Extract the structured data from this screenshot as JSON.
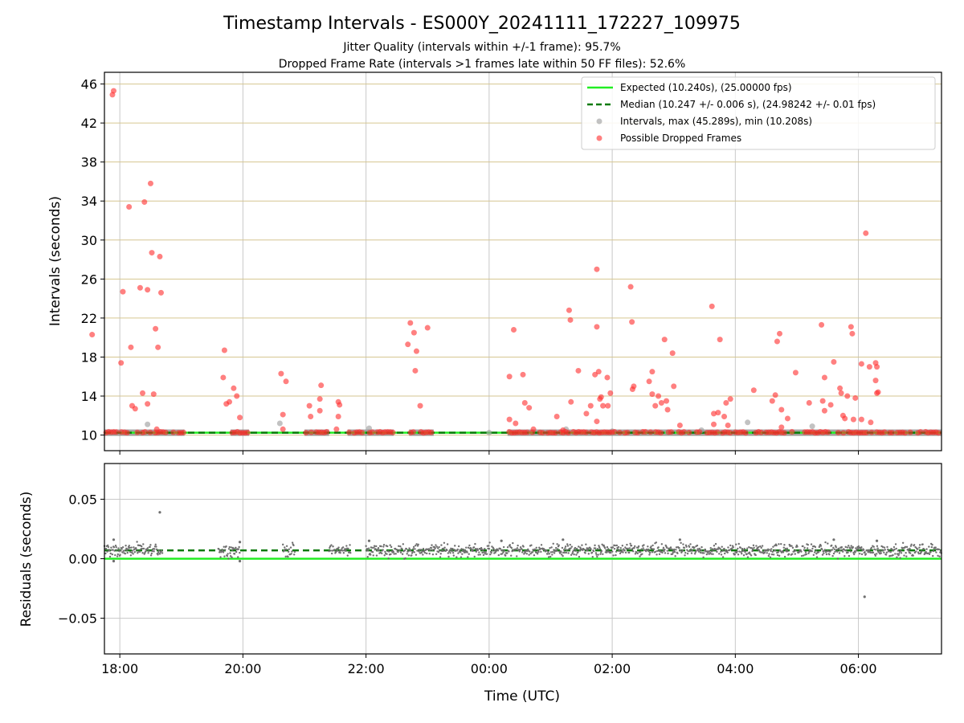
{
  "chart_data": [
    {
      "type": "scatter",
      "title": "Timestamp Intervals - ES000Y_20241111_172227_109975",
      "subtitle_lines": [
        "Jitter Quality (intervals within +/-1 frame): 95.7%",
        "Dropped Frame Rate (intervals >1 frames late within 50 FF files): 52.6%"
      ],
      "xlabel": "",
      "ylabel": "Intervals (seconds)",
      "x_unit": "hours relative to 00:00 UTC",
      "xlim": [
        -6.25,
        7.35
      ],
      "ylim": [
        8.4,
        47.2
      ],
      "yticks": [
        10,
        14,
        18,
        22,
        26,
        30,
        34,
        38,
        42,
        46
      ],
      "ytick_labels": [
        "10",
        "14",
        "18",
        "22",
        "26",
        "30",
        "34",
        "38",
        "42",
        "46"
      ],
      "grid": {
        "horizontal_color": "#d6c691",
        "vertical_color": "#c8c8c8",
        "enabled": true
      },
      "legend_position": "top-right",
      "legend": [
        {
          "label": "Expected (10.240s), (25.00000 fps)",
          "kind": "solid-line",
          "color": "#22ee22"
        },
        {
          "label": "Median (10.247 +/- 0.006 s), (24.98242 +/- 0.01 fps)",
          "kind": "dashed-line",
          "color": "#0a7a0a"
        },
        {
          "label": "Intervals, max (45.289s), min (10.208s)",
          "kind": "marker",
          "color": "#999999"
        },
        {
          "label": "Possible Dropped Frames",
          "kind": "marker",
          "color": "#ff2b2b"
        }
      ],
      "expected_value": 10.24,
      "median_value": 10.247,
      "intervals_x_ranges": [
        [
          -6.6,
          -5.95
        ],
        [
          -5.95,
          -4.95
        ],
        [
          -4.2,
          -3.9
        ],
        [
          -3.0,
          -2.6
        ],
        [
          -2.3,
          -1.55
        ],
        [
          -1.3,
          -0.9
        ],
        [
          0.3,
          7.35
        ]
      ],
      "series": [
        {
          "name": "Intervals, max (45.289s), min (10.208s)",
          "color": "#999999",
          "points": [
            [
              -5.55,
              11.1
            ],
            [
              -3.4,
              11.2
            ],
            [
              -1.95,
              10.7
            ],
            [
              1.25,
              10.6
            ],
            [
              2.0,
              10.4
            ],
            [
              3.45,
              10.5
            ],
            [
              4.2,
              11.3
            ],
            [
              5.25,
              10.9
            ],
            [
              -6.1,
              10.25
            ],
            [
              -4.0,
              10.25
            ],
            [
              0.0,
              10.25
            ],
            [
              2.9,
              10.25
            ]
          ]
        },
        {
          "name": "Possible Dropped Frames",
          "color": "#ff2b2b",
          "points": [
            [
              -6.45,
              20.3
            ],
            [
              -6.1,
              45.3
            ],
            [
              -6.12,
              44.9
            ],
            [
              -5.98,
              17.4
            ],
            [
              -5.95,
              24.7
            ],
            [
              -5.85,
              33.4
            ],
            [
              -5.82,
              19.0
            ],
            [
              -5.8,
              13.0
            ],
            [
              -5.75,
              12.7
            ],
            [
              -5.67,
              25.1
            ],
            [
              -5.63,
              14.3
            ],
            [
              -5.6,
              33.9
            ],
            [
              -5.55,
              24.9
            ],
            [
              -5.55,
              13.2
            ],
            [
              -5.5,
              35.8
            ],
            [
              -5.48,
              28.7
            ],
            [
              -5.45,
              14.2
            ],
            [
              -5.42,
              20.9
            ],
            [
              -5.38,
              19.0
            ],
            [
              -5.35,
              28.3
            ],
            [
              -5.33,
              24.6
            ],
            [
              -5.4,
              10.6
            ],
            [
              -4.3,
              18.7
            ],
            [
              -4.32,
              15.9
            ],
            [
              -4.27,
              13.2
            ],
            [
              -4.22,
              13.4
            ],
            [
              -4.15,
              14.8
            ],
            [
              -4.1,
              14.0
            ],
            [
              -4.05,
              11.8
            ],
            [
              -3.38,
              16.3
            ],
            [
              -3.3,
              15.5
            ],
            [
              -3.35,
              12.1
            ],
            [
              -3.35,
              10.6
            ],
            [
              -2.92,
              13.0
            ],
            [
              -2.9,
              11.9
            ],
            [
              -2.73,
              15.1
            ],
            [
              -2.75,
              13.7
            ],
            [
              -2.75,
              12.5
            ],
            [
              -2.45,
              13.4
            ],
            [
              -2.43,
              13.1
            ],
            [
              -2.45,
              11.9
            ],
            [
              -2.48,
              10.6
            ],
            [
              -1.32,
              19.3
            ],
            [
              -1.28,
              21.5
            ],
            [
              -1.22,
              20.5
            ],
            [
              -1.18,
              18.6
            ],
            [
              -1.2,
              16.6
            ],
            [
              -1.12,
              13.0
            ],
            [
              -1.0,
              21.0
            ],
            [
              0.33,
              16.0
            ],
            [
              0.33,
              11.6
            ],
            [
              0.4,
              20.8
            ],
            [
              0.43,
              11.2
            ],
            [
              0.55,
              16.2
            ],
            [
              0.58,
              13.3
            ],
            [
              0.65,
              12.8
            ],
            [
              0.72,
              10.6
            ],
            [
              1.1,
              11.9
            ],
            [
              1.2,
              10.5
            ],
            [
              1.3,
              22.8
            ],
            [
              1.32,
              21.8
            ],
            [
              1.33,
              13.4
            ],
            [
              1.45,
              16.6
            ],
            [
              1.58,
              12.2
            ],
            [
              1.65,
              13.0
            ],
            [
              1.72,
              16.2
            ],
            [
              1.75,
              27.0
            ],
            [
              1.75,
              21.1
            ],
            [
              1.75,
              11.4
            ],
            [
              1.78,
              16.5
            ],
            [
              1.8,
              13.7
            ],
            [
              1.82,
              13.9
            ],
            [
              1.85,
              13.0
            ],
            [
              1.92,
              15.9
            ],
            [
              1.93,
              13.0
            ],
            [
              1.97,
              14.3
            ],
            [
              2.3,
              25.2
            ],
            [
              2.32,
              21.6
            ],
            [
              2.33,
              14.7
            ],
            [
              2.35,
              15.0
            ],
            [
              2.6,
              15.5
            ],
            [
              2.65,
              16.5
            ],
            [
              2.65,
              14.2
            ],
            [
              2.7,
              13.0
            ],
            [
              2.75,
              14.0
            ],
            [
              2.8,
              13.3
            ],
            [
              2.85,
              19.8
            ],
            [
              2.88,
              13.5
            ],
            [
              2.9,
              12.6
            ],
            [
              2.98,
              18.4
            ],
            [
              3.0,
              15.0
            ],
            [
              3.1,
              11.0
            ],
            [
              3.62,
              23.2
            ],
            [
              3.65,
              12.2
            ],
            [
              3.65,
              11.1
            ],
            [
              3.72,
              12.3
            ],
            [
              3.75,
              19.8
            ],
            [
              3.82,
              11.9
            ],
            [
              3.85,
              13.3
            ],
            [
              3.88,
              11.0
            ],
            [
              3.92,
              13.7
            ],
            [
              4.3,
              14.6
            ],
            [
              4.6,
              13.5
            ],
            [
              4.65,
              14.1
            ],
            [
              4.68,
              19.6
            ],
            [
              4.72,
              20.4
            ],
            [
              4.75,
              12.6
            ],
            [
              4.85,
              11.7
            ],
            [
              4.75,
              10.8
            ],
            [
              4.98,
              16.4
            ],
            [
              5.2,
              13.3
            ],
            [
              5.4,
              21.3
            ],
            [
              5.42,
              13.5
            ],
            [
              5.45,
              12.5
            ],
            [
              5.45,
              15.9
            ],
            [
              5.55,
              13.1
            ],
            [
              5.6,
              17.5
            ],
            [
              5.7,
              14.8
            ],
            [
              5.72,
              14.3
            ],
            [
              5.75,
              12.0
            ],
            [
              5.78,
              11.7
            ],
            [
              5.82,
              14.0
            ],
            [
              5.88,
              21.1
            ],
            [
              5.9,
              20.4
            ],
            [
              5.92,
              11.6
            ],
            [
              5.95,
              13.8
            ],
            [
              6.05,
              11.6
            ],
            [
              6.05,
              17.3
            ],
            [
              6.12,
              30.7
            ],
            [
              6.18,
              17.0
            ],
            [
              6.2,
              11.3
            ],
            [
              6.28,
              15.6
            ],
            [
              6.28,
              17.4
            ],
            [
              6.3,
              17.0
            ],
            [
              6.3,
              14.3
            ],
            [
              6.32,
              14.4
            ]
          ]
        }
      ]
    },
    {
      "type": "scatter",
      "title": "",
      "xlabel": "Time (UTC)",
      "ylabel": "Residuals (seconds)",
      "x_unit": "hours relative to 00:00 UTC",
      "xlim": [
        -6.25,
        7.35
      ],
      "ylim": [
        -0.08,
        0.08
      ],
      "yticks": [
        -0.05,
        0.0,
        0.05
      ],
      "ytick_labels": [
        "−0.05",
        "0.00",
        "0.05"
      ],
      "xticks": [
        -6,
        -4,
        -2,
        0,
        2,
        4,
        6
      ],
      "xtick_labels": [
        "18:00",
        "20:00",
        "22:00",
        "00:00",
        "02:00",
        "04:00",
        "06:00"
      ],
      "grid": {
        "color": "#c8c8c8",
        "enabled": true
      },
      "expected_residual": 0.0,
      "median_residual": 0.007,
      "residual_spread": 0.004,
      "residual_x_ranges": [
        [
          -6.6,
          -5.3
        ],
        [
          -4.4,
          -4.05
        ],
        [
          -3.35,
          -3.15
        ],
        [
          -2.6,
          -2.25
        ],
        [
          -2.0,
          7.35
        ]
      ],
      "series": [
        {
          "name": "Residuals",
          "color": "#6f6f6f",
          "points": [
            [
              -5.35,
              0.039
            ],
            [
              6.1,
              -0.032
            ],
            [
              -6.1,
              0.016
            ],
            [
              -6.1,
              -0.002
            ],
            [
              -4.05,
              0.014
            ],
            [
              -4.05,
              -0.002
            ],
            [
              -1.95,
              0.015
            ],
            [
              0.2,
              0.015
            ],
            [
              1.2,
              0.016
            ],
            [
              3.1,
              0.016
            ],
            [
              5.6,
              0.016
            ],
            [
              6.3,
              0.015
            ]
          ]
        }
      ]
    }
  ]
}
